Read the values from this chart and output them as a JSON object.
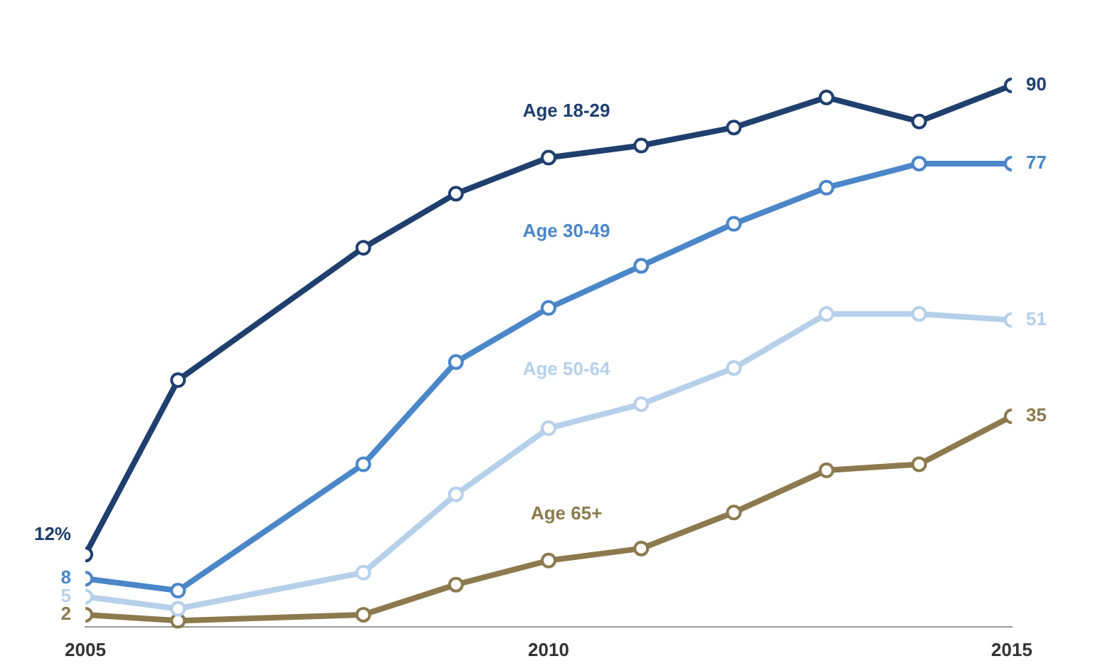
{
  "chart_data": {
    "type": "line",
    "x": [
      2005,
      2006,
      2008,
      2009,
      2010,
      2011,
      2012,
      2013,
      2014,
      2015
    ],
    "xlim": [
      2005,
      2015
    ],
    "xticks": [
      2005,
      2010,
      2015
    ],
    "tick_labels": "x",
    "grid": false,
    "legend": false,
    "marker": "circle",
    "line_style": "solid",
    "series": [
      {
        "name": "Age 18-29",
        "color": "#1f3f6e",
        "values": [
          12,
          41,
          63,
          72,
          78,
          80,
          83,
          88,
          84,
          90
        ],
        "value_labels": [
          "12%",
          null,
          null,
          null,
          null,
          null,
          null,
          null,
          null,
          "90"
        ]
      },
      {
        "name": "Age 30-49",
        "color": "#4a86c8",
        "values": [
          8,
          6,
          27,
          44,
          53,
          60,
          67,
          73,
          77,
          77
        ],
        "value_labels": [
          "8",
          null,
          null,
          null,
          null,
          null,
          null,
          null,
          null,
          "77"
        ]
      },
      {
        "name": "Age 50-64",
        "color": "#b6d0ea",
        "values": [
          5,
          3,
          9,
          22,
          33,
          37,
          43,
          52,
          52,
          51
        ],
        "value_labels": [
          "5",
          null,
          null,
          null,
          null,
          null,
          null,
          null,
          null,
          "51"
        ]
      },
      {
        "name": "Age 65+",
        "color": "#8c7a4e",
        "values": [
          2,
          1,
          2,
          7,
          11,
          13,
          19,
          26,
          27,
          35
        ],
        "value_labels": [
          "2",
          null,
          null,
          null,
          null,
          null,
          null,
          null,
          null,
          "35"
        ]
      }
    ]
  }
}
